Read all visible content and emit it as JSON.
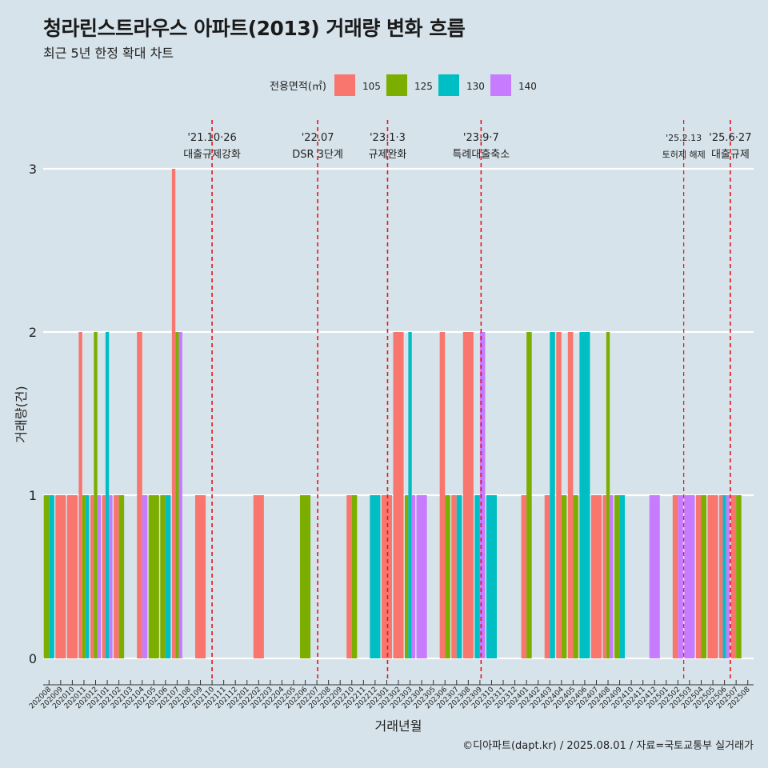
{
  "title": "청라린스트라우스 아파트(2013) 거래량 변화 흐름",
  "subtitle": "최근 5년 한정 확대 차트",
  "caption": "©디아파트(dapt.kr) / 2025.08.01 / 자료=국토교통부 실거래가",
  "colors": {
    "background": "#d6e3ea",
    "grid": "#ffffff",
    "event_line": "#e8141c",
    "105": "#f8766d",
    "125": "#7cae00",
    "130": "#00bfc4",
    "140": "#c77cff"
  },
  "chart_data": {
    "type": "bar",
    "stacking": "dodge",
    "xlabel": "거래년월",
    "ylabel": "거래량(건)",
    "ylim": [
      0,
      3
    ],
    "yticks": [
      0,
      1,
      2,
      3
    ],
    "grid": true,
    "legend": {
      "title": "전용면적(㎡)",
      "position": "top",
      "entries": [
        "105",
        "125",
        "130",
        "140"
      ]
    },
    "categories": [
      "202008",
      "202009",
      "202010",
      "202011",
      "202012",
      "202101",
      "202102",
      "202103",
      "202104",
      "202105",
      "202106",
      "202107",
      "202108",
      "202109",
      "202110",
      "202111",
      "202112",
      "202201",
      "202202",
      "202203",
      "202204",
      "202205",
      "202206",
      "202207",
      "202208",
      "202209",
      "202210",
      "202211",
      "202212",
      "202301",
      "202302",
      "202303",
      "202304",
      "202305",
      "202306",
      "202307",
      "202308",
      "202309",
      "202310",
      "202311",
      "202312",
      "202401",
      "202402",
      "202403",
      "202404",
      "202405",
      "202406",
      "202407",
      "202408",
      "202409",
      "202410",
      "202411",
      "202412",
      "202501",
      "202502",
      "202503",
      "202504",
      "202505",
      "202506",
      "202507",
      "202508"
    ],
    "bars": [
      {
        "month": "202008",
        "groups": [
          [
            "125",
            1
          ],
          [
            "130",
            1
          ]
        ]
      },
      {
        "month": "202009",
        "groups": [
          [
            "105",
            1
          ]
        ]
      },
      {
        "month": "202010",
        "groups": [
          [
            "105",
            1
          ]
        ]
      },
      {
        "month": "202011",
        "groups": [
          [
            "105",
            2
          ],
          [
            "125",
            1
          ],
          [
            "130",
            1
          ]
        ]
      },
      {
        "month": "202012",
        "groups": [
          [
            "105",
            1
          ],
          [
            "125",
            2
          ],
          [
            "140",
            1
          ]
        ]
      },
      {
        "month": "202101",
        "groups": [
          [
            "105",
            1
          ],
          [
            "130",
            2
          ],
          [
            "140",
            1
          ]
        ]
      },
      {
        "month": "202102",
        "groups": [
          [
            "105",
            1
          ],
          [
            "125",
            1
          ]
        ]
      },
      {
        "month": "202104",
        "groups": [
          [
            "105",
            2
          ],
          [
            "140",
            1
          ]
        ]
      },
      {
        "month": "202105",
        "groups": [
          [
            "125",
            1
          ]
        ]
      },
      {
        "month": "202106",
        "groups": [
          [
            "125",
            1
          ],
          [
            "130",
            1
          ]
        ]
      },
      {
        "month": "202107",
        "groups": [
          [
            "105",
            3
          ],
          [
            "125",
            2
          ],
          [
            "140",
            2
          ]
        ]
      },
      {
        "month": "202109",
        "groups": [
          [
            "105",
            1
          ]
        ]
      },
      {
        "month": "202202",
        "groups": [
          [
            "105",
            1
          ]
        ]
      },
      {
        "month": "202206",
        "groups": [
          [
            "125",
            1
          ]
        ]
      },
      {
        "month": "202210",
        "groups": [
          [
            "105",
            1
          ],
          [
            "125",
            1
          ]
        ]
      },
      {
        "month": "202212",
        "groups": [
          [
            "130",
            1
          ]
        ]
      },
      {
        "month": "202301",
        "groups": [
          [
            "105",
            1
          ]
        ]
      },
      {
        "month": "202302",
        "groups": [
          [
            "105",
            2
          ]
        ]
      },
      {
        "month": "202303",
        "groups": [
          [
            "125",
            1
          ],
          [
            "130",
            2
          ],
          [
            "140",
            1
          ]
        ]
      },
      {
        "month": "202304",
        "groups": [
          [
            "140",
            1
          ]
        ]
      },
      {
        "month": "202306",
        "groups": [
          [
            "105",
            2
          ],
          [
            "125",
            1
          ]
        ]
      },
      {
        "month": "202307",
        "groups": [
          [
            "105",
            1
          ],
          [
            "130",
            1
          ]
        ]
      },
      {
        "month": "202308",
        "groups": [
          [
            "105",
            2
          ]
        ]
      },
      {
        "month": "202309",
        "groups": [
          [
            "130",
            1
          ],
          [
            "140",
            2
          ]
        ]
      },
      {
        "month": "202310",
        "groups": [
          [
            "130",
            1
          ]
        ]
      },
      {
        "month": "202401",
        "groups": [
          [
            "105",
            1
          ],
          [
            "125",
            2
          ]
        ]
      },
      {
        "month": "202403",
        "groups": [
          [
            "105",
            1
          ],
          [
            "130",
            2
          ]
        ]
      },
      {
        "month": "202404",
        "groups": [
          [
            "105",
            2
          ],
          [
            "125",
            1
          ]
        ]
      },
      {
        "month": "202405",
        "groups": [
          [
            "105",
            2
          ],
          [
            "125",
            1
          ]
        ]
      },
      {
        "month": "202406",
        "groups": [
          [
            "130",
            2
          ]
        ]
      },
      {
        "month": "202407",
        "groups": [
          [
            "105",
            1
          ]
        ]
      },
      {
        "month": "202408",
        "groups": [
          [
            "105",
            1
          ],
          [
            "125",
            2
          ],
          [
            "140",
            1
          ]
        ]
      },
      {
        "month": "202409",
        "groups": [
          [
            "125",
            1
          ],
          [
            "130",
            1
          ]
        ]
      },
      {
        "month": "202412",
        "groups": [
          [
            "140",
            1
          ]
        ]
      },
      {
        "month": "202502",
        "groups": [
          [
            "105",
            1
          ],
          [
            "140",
            1
          ]
        ]
      },
      {
        "month": "202503",
        "groups": [
          [
            "140",
            1
          ]
        ]
      },
      {
        "month": "202504",
        "groups": [
          [
            "105",
            1
          ],
          [
            "125",
            1
          ]
        ]
      },
      {
        "month": "202505",
        "groups": [
          [
            "105",
            1
          ]
        ]
      },
      {
        "month": "202506",
        "groups": [
          [
            "105",
            1
          ],
          [
            "130",
            1
          ],
          [
            "140",
            1
          ]
        ]
      },
      {
        "month": "202507",
        "groups": [
          [
            "105",
            1
          ],
          [
            "125",
            1
          ]
        ]
      }
    ],
    "events": [
      {
        "x": 14.0,
        "date": "'21.10·26",
        "label": "대출규제강화",
        "small": false
      },
      {
        "x": 23.07,
        "date": "'22.07",
        "label": "DSR 3단계",
        "small": false
      },
      {
        "x": 29.07,
        "date": "'23.1·3",
        "label": "규제완화",
        "small": false
      },
      {
        "x": 37.1,
        "date": "'23.9·7",
        "label": "특례대출축소",
        "small": false
      },
      {
        "x": 54.5,
        "date": "'25.2.13",
        "label": "토허제 해제",
        "small": true
      },
      {
        "x": 58.5,
        "date": "'25.6·27",
        "label": "대출규제",
        "small": false
      }
    ]
  }
}
